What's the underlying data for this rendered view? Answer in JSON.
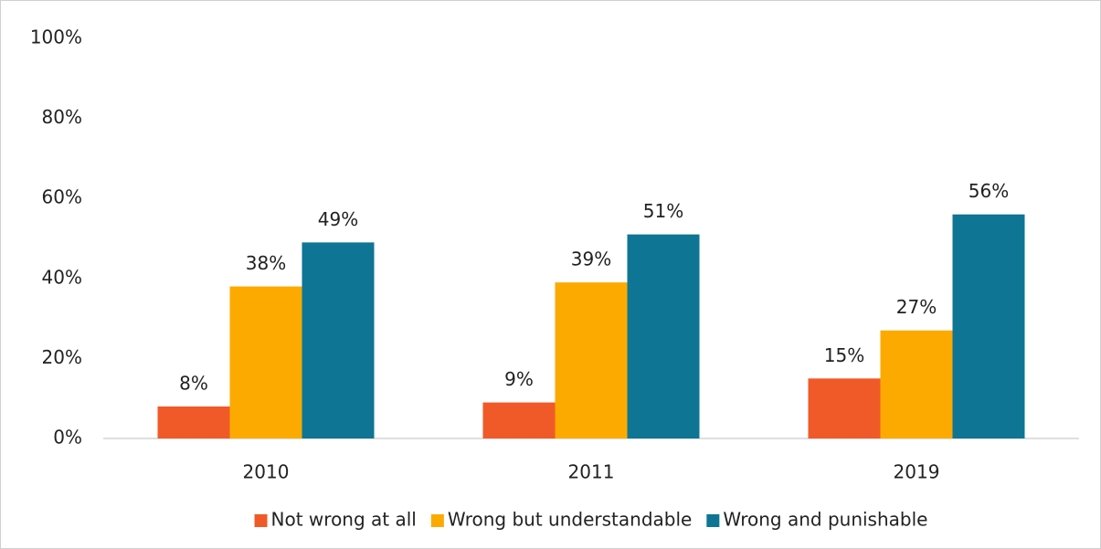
{
  "chart_data": {
    "type": "bar",
    "categories": [
      "2010",
      "2011",
      "2019"
    ],
    "series": [
      {
        "name": "Not wrong at all",
        "color": "#f05a28",
        "values": [
          8,
          9,
          15
        ],
        "value_labels": [
          "8%",
          "9%",
          "15%"
        ]
      },
      {
        "name": "Wrong but understandable",
        "color": "#fcaa00",
        "values": [
          38,
          39,
          27
        ],
        "value_labels": [
          "38%",
          "39%",
          "27%"
        ]
      },
      {
        "name": "Wrong and punishable",
        "color": "#0e7594",
        "values": [
          49,
          51,
          56
        ],
        "value_labels": [
          "49%",
          "51%",
          "56%"
        ]
      }
    ],
    "ylim": [
      0,
      100
    ],
    "yticks": [
      {
        "value": 0,
        "label": "0%"
      },
      {
        "value": 20,
        "label": "20%"
      },
      {
        "value": 40,
        "label": "40%"
      },
      {
        "value": 60,
        "label": "60%"
      },
      {
        "value": 80,
        "label": "80%"
      },
      {
        "value": 100,
        "label": "100%"
      }
    ],
    "grid": false,
    "legend": "bottom"
  }
}
